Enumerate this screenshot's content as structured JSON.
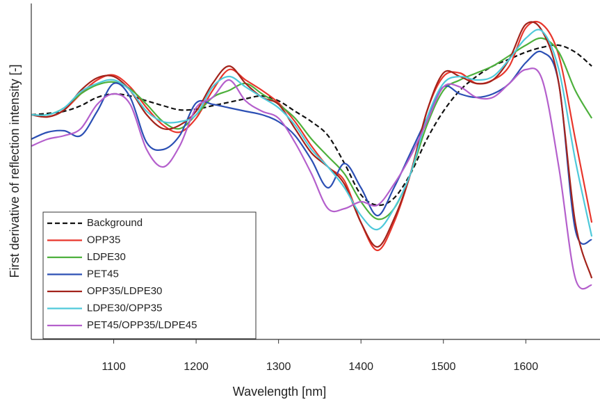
{
  "chart_data": {
    "type": "line",
    "xlabel": "Wavelength [nm]",
    "ylabel": "First derivative of reflection intensity [-]",
    "x": [
      1000,
      1020,
      1040,
      1060,
      1080,
      1100,
      1120,
      1140,
      1160,
      1180,
      1200,
      1220,
      1240,
      1260,
      1280,
      1300,
      1320,
      1340,
      1360,
      1380,
      1400,
      1420,
      1440,
      1460,
      1480,
      1500,
      1520,
      1540,
      1560,
      1580,
      1600,
      1620,
      1640,
      1660,
      1680
    ],
    "xlim": [
      1000,
      1690
    ],
    "xticks": [
      1100,
      1200,
      1300,
      1400,
      1500,
      1600
    ],
    "ylim": [
      0,
      483
    ],
    "legend": "lower left",
    "series": [
      {
        "name": "Background",
        "color": "#111111",
        "dash": true,
        "values": [
          323,
          325,
          328,
          336,
          348,
          353,
          350,
          343,
          336,
          330,
          331,
          336,
          341,
          346,
          350,
          343,
          328,
          313,
          293,
          253,
          208,
          193,
          203,
          238,
          288,
          328,
          358,
          378,
          393,
          403,
          413,
          420,
          423,
          413,
          393
        ]
      },
      {
        "name": "OPP35",
        "color": "#e8362c",
        "dash": false,
        "values": [
          323,
          320,
          330,
          353,
          373,
          380,
          363,
          333,
          308,
          298,
          318,
          358,
          388,
          373,
          358,
          340,
          313,
          278,
          248,
          228,
          168,
          128,
          168,
          238,
          328,
          378,
          383,
          368,
          373,
          393,
          448,
          453,
          408,
          288,
          168
        ]
      },
      {
        "name": "LDPE30",
        "color": "#4db03c",
        "dash": false,
        "values": [
          323,
          323,
          333,
          353,
          366,
          370,
          360,
          338,
          313,
          303,
          323,
          348,
          358,
          368,
          353,
          338,
          318,
          288,
          263,
          238,
          198,
          173,
          188,
          238,
          308,
          358,
          373,
          383,
          393,
          408,
          423,
          433,
          413,
          358,
          318
        ]
      },
      {
        "name": "PET45",
        "color": "#2b4fb4",
        "dash": false,
        "values": [
          288,
          298,
          300,
          293,
          328,
          368,
          348,
          283,
          273,
          293,
          340,
          338,
          333,
          328,
          323,
          313,
          293,
          258,
          218,
          253,
          218,
          178,
          218,
          268,
          318,
          363,
          353,
          348,
          353,
          368,
          398,
          413,
          368,
          158,
          143
        ]
      },
      {
        "name": "OPP35/LDPE30",
        "color": "#a3231b",
        "dash": false,
        "values": [
          323,
          320,
          330,
          358,
          376,
          378,
          358,
          323,
          303,
          308,
          328,
          368,
          393,
          368,
          348,
          338,
          303,
          268,
          248,
          223,
          168,
          133,
          173,
          238,
          328,
          383,
          378,
          368,
          373,
          403,
          453,
          443,
          368,
          168,
          88
        ]
      },
      {
        "name": "LDPE30/OPP35",
        "color": "#4fc9da",
        "dash": false,
        "values": [
          323,
          323,
          333,
          356,
          368,
          373,
          358,
          328,
          313,
          313,
          323,
          363,
          378,
          363,
          348,
          333,
          308,
          273,
          248,
          218,
          178,
          158,
          188,
          238,
          318,
          368,
          378,
          373,
          378,
          403,
          433,
          443,
          388,
          258,
          148
        ]
      },
      {
        "name": "PET45/OPP35/LDPE45",
        "color": "#b45fcc",
        "dash": false,
        "values": [
          278,
          288,
          293,
          303,
          338,
          353,
          338,
          273,
          248,
          278,
          333,
          348,
          373,
          343,
          328,
          318,
          283,
          238,
          188,
          188,
          198,
          193,
          223,
          263,
          313,
          363,
          363,
          348,
          348,
          368,
          388,
          373,
          248,
          88,
          78
        ]
      }
    ]
  }
}
